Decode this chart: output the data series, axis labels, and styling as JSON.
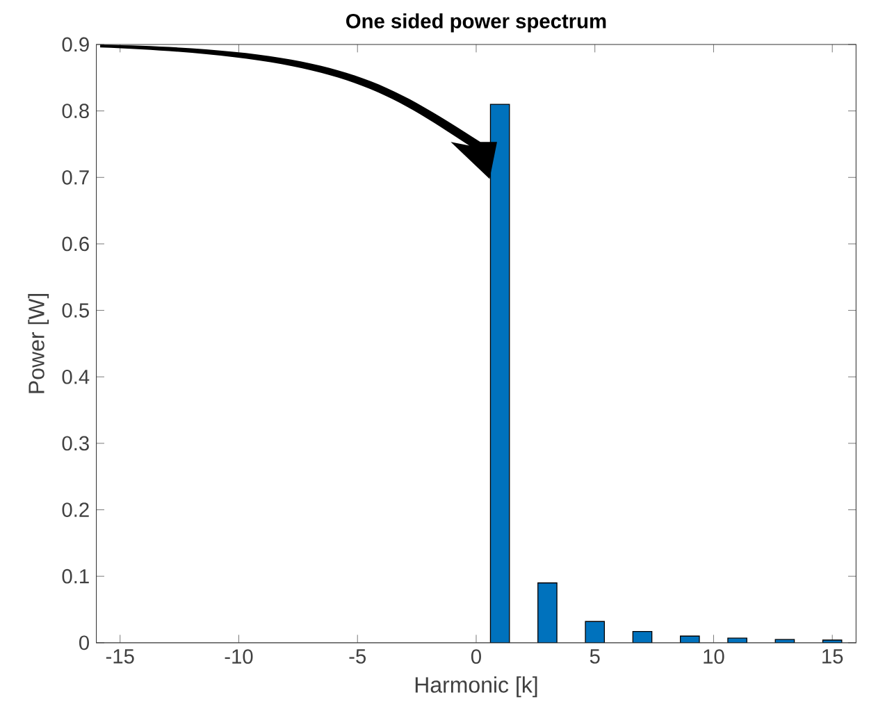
{
  "chart_data": {
    "type": "bar",
    "title": "One sided power spectrum",
    "xlabel": "Harmonic [k]",
    "ylabel": "Power [W]",
    "x": [
      1,
      3,
      5,
      7,
      9,
      11,
      13,
      15
    ],
    "values": [
      0.81,
      0.09,
      0.032,
      0.017,
      0.01,
      0.007,
      0.005,
      0.004
    ],
    "color": "#0072bd",
    "xlim": [
      -16,
      16
    ],
    "xticks": [
      -15,
      -10,
      -5,
      0,
      5,
      10,
      15
    ],
    "ylim": [
      0,
      0.9
    ],
    "yticks": [
      0,
      0.1,
      0.2,
      0.3,
      0.4,
      0.5,
      0.6,
      0.7,
      0.8,
      0.9
    ],
    "grid": false
  }
}
